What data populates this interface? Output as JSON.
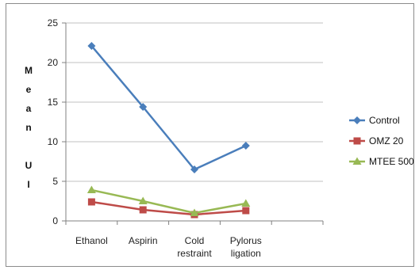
{
  "chart_data": {
    "type": "line",
    "categories": [
      "Ethanol",
      "Aspirin",
      "Cold restraint",
      "Pylorus ligation"
    ],
    "category_lines": [
      [
        "Ethanol"
      ],
      [
        "Aspirin"
      ],
      [
        "Cold",
        "restraint"
      ],
      [
        "Pylorus",
        "ligation"
      ]
    ],
    "ylabel": "Mean UI",
    "ylabel_letters": [
      "M",
      "e",
      "a",
      "n",
      "",
      "U",
      "I"
    ],
    "ylim": [
      0,
      25
    ],
    "yticks": [
      0,
      5,
      10,
      15,
      20,
      25
    ],
    "grid": true,
    "legend_position": "right",
    "series": [
      {
        "name": "Control",
        "values": [
          22.1,
          14.4,
          6.5,
          9.5
        ],
        "color": "#4a7ebb",
        "marker": "diamond"
      },
      {
        "name": "OMZ 20",
        "values": [
          2.4,
          1.4,
          0.8,
          1.3
        ],
        "color": "#be4b48",
        "marker": "square"
      },
      {
        "name": "MTEE 500",
        "values": [
          3.9,
          2.5,
          1.0,
          2.2
        ],
        "color": "#98b954",
        "marker": "triangle"
      }
    ]
  }
}
